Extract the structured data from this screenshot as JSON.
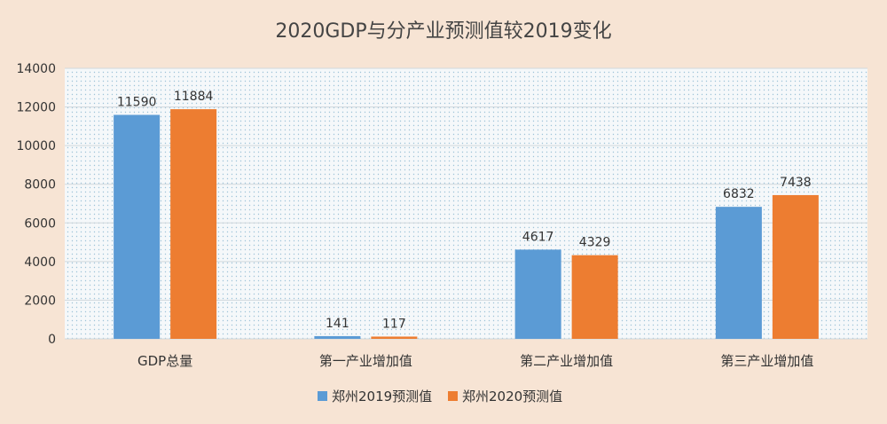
{
  "chart_data": {
    "type": "bar",
    "title": "2020GDP与分产业预测值较2019变化",
    "categories": [
      "GDP总量",
      "第一产业增加值",
      "第二产业增加值",
      "第三产业增加值"
    ],
    "series": [
      {
        "name": "郑州2019预测值",
        "values": [
          11590,
          141,
          4617,
          6832
        ],
        "color": "#5b9bd5"
      },
      {
        "name": "郑州2020预测值",
        "values": [
          11884,
          117,
          4329,
          7438
        ],
        "color": "#ed7d31"
      }
    ],
    "ylim": [
      0,
      14000
    ],
    "yticks": [
      0,
      2000,
      4000,
      6000,
      8000,
      10000,
      12000,
      14000
    ],
    "grid": true,
    "legend_position": "bottom"
  }
}
